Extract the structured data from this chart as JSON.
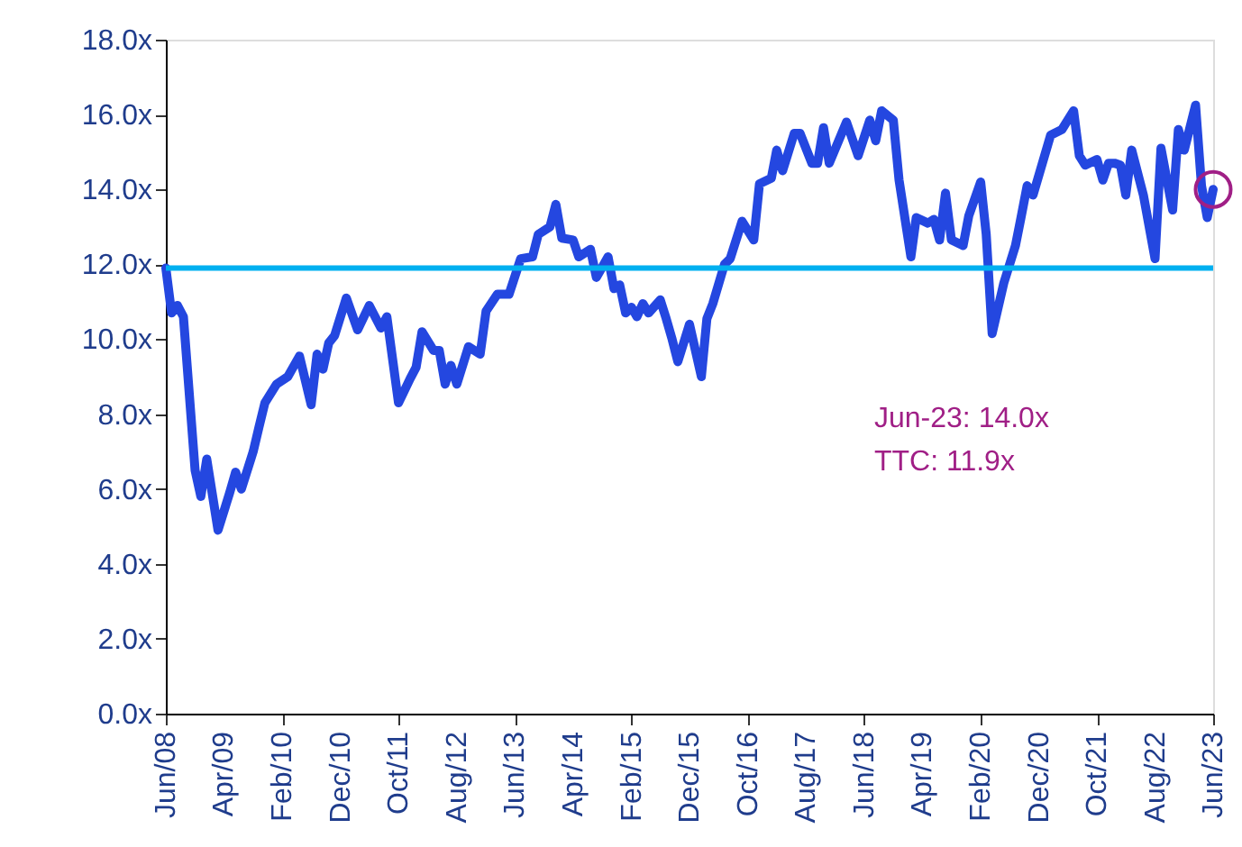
{
  "chart_data": {
    "type": "line",
    "x": [
      "2008-06",
      "2008-07",
      "2008-08",
      "2008-09",
      "2008-11",
      "2008-12",
      "2009-01",
      "2009-03",
      "2009-05",
      "2009-06",
      "2009-07",
      "2009-09",
      "2009-10",
      "2009-11",
      "2010-01",
      "2010-03",
      "2010-05",
      "2010-07",
      "2010-08",
      "2010-09",
      "2010-10",
      "2010-11",
      "2011-01",
      "2011-03",
      "2011-05",
      "2011-07",
      "2011-08",
      "2011-10",
      "2011-12",
      "2012-01",
      "2012-02",
      "2012-04",
      "2012-05",
      "2012-06",
      "2012-07",
      "2012-08",
      "2012-10",
      "2012-12",
      "2013-01",
      "2013-03",
      "2013-05",
      "2013-07",
      "2013-09",
      "2013-10",
      "2013-12",
      "2014-01",
      "2014-02",
      "2014-04",
      "2014-05",
      "2014-07",
      "2014-08",
      "2014-10",
      "2014-11",
      "2014-12",
      "2015-01",
      "2015-02",
      "2015-03",
      "2015-04",
      "2015-05",
      "2015-07",
      "2015-08",
      "2015-09",
      "2015-10",
      "2015-12",
      "2016-02",
      "2016-03",
      "2016-04",
      "2016-06",
      "2016-07",
      "2016-09",
      "2016-11",
      "2016-12",
      "2017-02",
      "2017-03",
      "2017-04",
      "2017-06",
      "2017-07",
      "2017-09",
      "2017-10",
      "2017-11",
      "2017-12",
      "2018-03",
      "2018-05",
      "2018-07",
      "2018-08",
      "2018-09",
      "2018-11",
      "2018-12",
      "2019-02",
      "2019-03",
      "2019-05",
      "2019-06",
      "2019-07",
      "2019-08",
      "2019-09",
      "2019-11",
      "2019-12",
      "2020-02",
      "2020-03",
      "2020-04",
      "2020-06",
      "2020-08",
      "2020-09",
      "2020-10",
      "2020-11",
      "2021-02",
      "2021-04",
      "2021-06",
      "2021-07",
      "2021-08",
      "2021-10",
      "2021-11",
      "2021-12",
      "2022-01",
      "2022-02",
      "2022-03",
      "2022-04",
      "2022-06",
      "2022-08",
      "2022-09",
      "2022-11",
      "2022-12",
      "2023-01",
      "2023-03",
      "2023-04",
      "2023-05",
      "2023-06"
    ],
    "series": [
      {
        "color": "#2447e0",
        "values": [
          11.9,
          10.7,
          10.9,
          10.6,
          6.5,
          5.8,
          6.8,
          4.9,
          5.9,
          6.45,
          6.0,
          7.0,
          7.65,
          8.3,
          8.8,
          9.0,
          9.55,
          8.25,
          9.6,
          9.2,
          9.9,
          10.1,
          11.1,
          10.25,
          10.9,
          10.3,
          10.6,
          8.3,
          8.95,
          9.25,
          10.2,
          9.7,
          9.7,
          8.8,
          9.3,
          8.8,
          9.8,
          9.6,
          10.75,
          11.2,
          11.2,
          12.15,
          12.2,
          12.8,
          13.0,
          13.6,
          12.7,
          12.65,
          12.2,
          12.4,
          11.65,
          12.2,
          11.35,
          11.45,
          10.7,
          10.85,
          10.6,
          10.95,
          10.7,
          11.05,
          10.55,
          10.0,
          9.4,
          10.4,
          9.0,
          10.55,
          10.95,
          12.0,
          12.15,
          13.15,
          12.65,
          14.15,
          14.3,
          15.05,
          14.5,
          15.5,
          15.5,
          14.7,
          14.7,
          15.65,
          14.7,
          15.8,
          14.9,
          15.85,
          15.3,
          16.1,
          15.85,
          14.25,
          12.2,
          13.25,
          13.1,
          13.2,
          12.65,
          13.9,
          12.65,
          12.5,
          13.3,
          14.2,
          12.8,
          10.15,
          11.5,
          12.5,
          13.3,
          14.1,
          13.85,
          15.45,
          15.6,
          16.1,
          14.9,
          14.65,
          14.8,
          14.25,
          14.7,
          14.7,
          14.65,
          13.85,
          15.05,
          13.85,
          12.15,
          15.1,
          13.45,
          15.6,
          15.05,
          16.25,
          14.1,
          13.25,
          14.0
        ]
      }
    ],
    "ref_lines": [
      {
        "axis": "y",
        "value": 11.9,
        "color": "#00b0f0"
      }
    ],
    "annotations": [
      "Jun-23: 14.0x",
      "TTC: 11.9x"
    ],
    "xlim": [
      "2008-06",
      "2023-06"
    ],
    "xticks": [
      {
        "value": "2008-06",
        "label": "Jun/08"
      },
      {
        "value": "2009-04",
        "label": "Apr/09"
      },
      {
        "value": "2010-02",
        "label": "Feb/10"
      },
      {
        "value": "2010-12",
        "label": "Dec/10"
      },
      {
        "value": "2011-10",
        "label": "Oct/11"
      },
      {
        "value": "2012-08",
        "label": "Aug/12"
      },
      {
        "value": "2013-06",
        "label": "Jun/13"
      },
      {
        "value": "2014-04",
        "label": "Apr/14"
      },
      {
        "value": "2015-02",
        "label": "Feb/15"
      },
      {
        "value": "2015-12",
        "label": "Dec/15"
      },
      {
        "value": "2016-10",
        "label": "Oct/16"
      },
      {
        "value": "2017-08",
        "label": "Aug/17"
      },
      {
        "value": "2018-06",
        "label": "Jun/18"
      },
      {
        "value": "2019-04",
        "label": "Apr/19"
      },
      {
        "value": "2020-02",
        "label": "Feb/20"
      },
      {
        "value": "2020-12",
        "label": "Dec/20"
      },
      {
        "value": "2021-10",
        "label": "Oct/21"
      },
      {
        "value": "2022-08",
        "label": "Aug/22"
      },
      {
        "value": "2023-06",
        "label": "Jun/23"
      }
    ],
    "ylim": [
      0,
      18
    ],
    "yticks": [
      {
        "value": 0,
        "label": "0.0x"
      },
      {
        "value": 2,
        "label": "2.0x"
      },
      {
        "value": 4,
        "label": "4.0x"
      },
      {
        "value": 6,
        "label": "6.0x"
      },
      {
        "value": 8,
        "label": "8.0x"
      },
      {
        "value": 10,
        "label": "10.0x"
      },
      {
        "value": 12,
        "label": "12.0x"
      },
      {
        "value": 14,
        "label": "14.0x"
      },
      {
        "value": 16,
        "label": "16.0x"
      },
      {
        "value": 18,
        "label": "18.0x"
      }
    ],
    "grid": false,
    "marker": "none",
    "line_style": "solid"
  }
}
